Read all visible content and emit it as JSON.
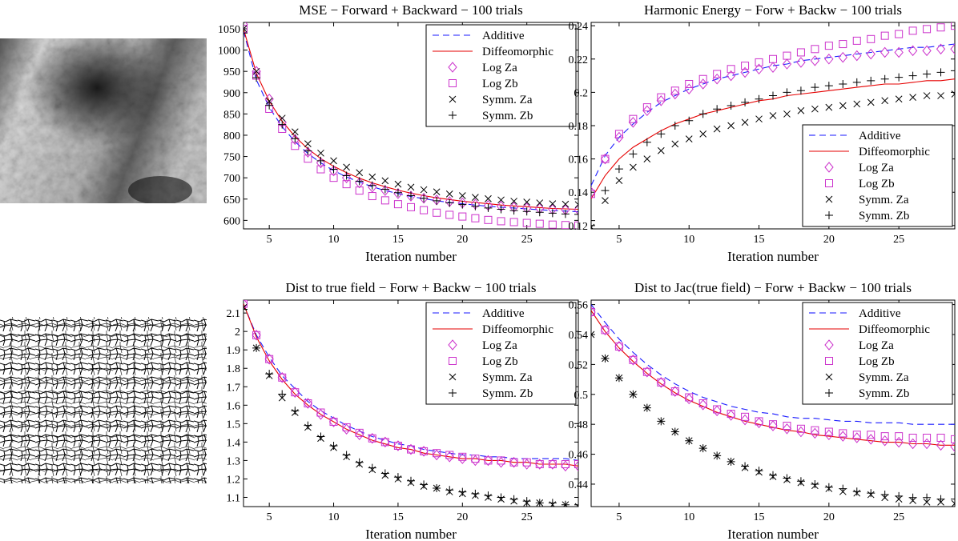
{
  "colors": {
    "additive": "#1a1aff",
    "diffeomorphic": "#e60000",
    "log": "#cc33cc",
    "symm": "#000000",
    "axis": "#000000",
    "background": "#ffffff"
  },
  "images": [
    {
      "name": "grayscale-texture-image",
      "kind": "grayscale cellular texture with dark radial center"
    },
    {
      "name": "binary-crack-pattern-image",
      "kind": "black polygonal crack network on white"
    }
  ],
  "chart_data": [
    {
      "type": "line",
      "title": "MSE − Forward + Backward − 100 trials",
      "xlabel": "Iteration number",
      "ylabel": "",
      "xlim": [
        3,
        29
      ],
      "ylim": [
        580,
        1065
      ],
      "xticks": [
        5,
        10,
        15,
        20,
        25
      ],
      "yticks": [
        600,
        650,
        700,
        750,
        800,
        850,
        900,
        950,
        1000,
        1050
      ],
      "legend_position": "top-right",
      "x": [
        3,
        4,
        5,
        6,
        7,
        8,
        9,
        10,
        11,
        12,
        13,
        14,
        15,
        16,
        17,
        18,
        19,
        20,
        21,
        22,
        23,
        24,
        25,
        26,
        27,
        28,
        29
      ],
      "series": [
        {
          "name": "Additive",
          "style": "dashed",
          "values": [
            1045,
            930,
            865,
            820,
            785,
            757,
            735,
            717,
            702,
            690,
            679,
            670,
            663,
            656,
            651,
            646,
            642,
            639,
            636,
            633,
            631,
            629,
            627,
            625,
            623,
            622,
            620
          ]
        },
        {
          "name": "Diffeomorphic",
          "style": "solid",
          "values": [
            1050,
            945,
            880,
            833,
            797,
            768,
            745,
            727,
            712,
            699,
            688,
            679,
            671,
            664,
            658,
            653,
            649,
            645,
            642,
            639,
            636,
            634,
            632,
            630,
            628,
            627,
            626
          ]
        },
        {
          "name": "Log Za",
          "style": "diamond",
          "values": [
            1060,
            950,
            885,
            830,
            790,
            760,
            735,
            716,
            700,
            688,
            678,
            670,
            663,
            657,
            652,
            648,
            644,
            641,
            638,
            635,
            633,
            631,
            629,
            628,
            626,
            625,
            625
          ]
        },
        {
          "name": "Log Zb",
          "style": "square",
          "values": [
            1050,
            940,
            862,
            815,
            775,
            745,
            720,
            700,
            685,
            670,
            657,
            647,
            638,
            631,
            624,
            618,
            613,
            609,
            605,
            601,
            598,
            596,
            594,
            592,
            590,
            589,
            588
          ]
        },
        {
          "name": "Symm. Za",
          "style": "x",
          "values": [
            1050,
            950,
            880,
            840,
            808,
            780,
            758,
            740,
            725,
            712,
            702,
            693,
            685,
            678,
            672,
            667,
            662,
            658,
            654,
            651,
            648,
            645,
            643,
            641,
            639,
            638,
            637
          ]
        },
        {
          "name": "Symm. Zb",
          "style": "plus",
          "values": [
            1040,
            935,
            870,
            825,
            792,
            763,
            740,
            720,
            705,
            692,
            682,
            673,
            665,
            658,
            652,
            646,
            641,
            637,
            633,
            629,
            626,
            623,
            621,
            619,
            617,
            615,
            614
          ]
        }
      ]
    },
    {
      "type": "line",
      "title": "Harmonic Energy − Forw + Backw − 100 trials",
      "xlabel": "Iteration number",
      "ylabel": "",
      "xlim": [
        3,
        29
      ],
      "ylim": [
        0.118,
        0.242
      ],
      "xticks": [
        5,
        10,
        15,
        20,
        25
      ],
      "yticks": [
        0.12,
        0.14,
        0.16,
        0.18,
        0.2,
        0.22,
        0.24
      ],
      "legend_position": "bottom-right",
      "x": [
        3,
        4,
        5,
        6,
        7,
        8,
        9,
        10,
        11,
        12,
        13,
        14,
        15,
        16,
        17,
        18,
        19,
        20,
        21,
        22,
        23,
        24,
        25,
        26,
        27,
        28,
        29
      ],
      "series": [
        {
          "name": "Additive",
          "style": "dashed",
          "values": [
            0.144,
            0.162,
            0.173,
            0.181,
            0.188,
            0.194,
            0.198,
            0.202,
            0.205,
            0.208,
            0.21,
            0.212,
            0.214,
            0.216,
            0.217,
            0.219,
            0.22,
            0.221,
            0.222,
            0.223,
            0.224,
            0.225,
            0.226,
            0.227,
            0.227,
            0.228,
            0.229
          ]
        },
        {
          "name": "Diffeomorphic",
          "style": "solid",
          "values": [
            0.136,
            0.15,
            0.16,
            0.167,
            0.172,
            0.177,
            0.181,
            0.184,
            0.187,
            0.189,
            0.191,
            0.193,
            0.195,
            0.196,
            0.198,
            0.199,
            0.2,
            0.201,
            0.202,
            0.203,
            0.204,
            0.205,
            0.205,
            0.206,
            0.207,
            0.207,
            0.208
          ]
        },
        {
          "name": "Log Za",
          "style": "diamond",
          "values": [
            0.14,
            0.16,
            0.173,
            0.182,
            0.189,
            0.195,
            0.199,
            0.202,
            0.205,
            0.208,
            0.21,
            0.212,
            0.214,
            0.215,
            0.217,
            0.218,
            0.219,
            0.22,
            0.221,
            0.222,
            0.223,
            0.224,
            0.224,
            0.225,
            0.225,
            0.226,
            0.226
          ]
        },
        {
          "name": "Log Zb",
          "style": "square",
          "values": [
            0.139,
            0.16,
            0.175,
            0.184,
            0.191,
            0.197,
            0.201,
            0.205,
            0.208,
            0.211,
            0.214,
            0.216,
            0.218,
            0.22,
            0.222,
            0.224,
            0.226,
            0.228,
            0.229,
            0.231,
            0.232,
            0.234,
            0.235,
            0.237,
            0.238,
            0.239,
            0.24
          ]
        },
        {
          "name": "Symm. Za",
          "style": "x",
          "values": [
            0.119,
            0.135,
            0.147,
            0.155,
            0.16,
            0.165,
            0.169,
            0.172,
            0.175,
            0.178,
            0.18,
            0.182,
            0.184,
            0.186,
            0.187,
            0.189,
            0.19,
            0.191,
            0.192,
            0.193,
            0.194,
            0.195,
            0.196,
            0.197,
            0.198,
            0.198,
            0.199
          ]
        },
        {
          "name": "Symm. Zb",
          "style": "plus",
          "values": [
            0.123,
            0.141,
            0.154,
            0.163,
            0.17,
            0.175,
            0.18,
            0.183,
            0.187,
            0.19,
            0.192,
            0.194,
            0.196,
            0.198,
            0.2,
            0.201,
            0.203,
            0.204,
            0.205,
            0.206,
            0.207,
            0.208,
            0.209,
            0.21,
            0.211,
            0.212,
            0.213
          ]
        }
      ]
    },
    {
      "type": "line",
      "title": "Dist to true field − Forw + Backw − 100 trials",
      "xlabel": "Iteration number",
      "ylabel": "",
      "xlim": [
        3,
        29
      ],
      "ylim": [
        1.05,
        2.17
      ],
      "xticks": [
        5,
        10,
        15,
        20,
        25
      ],
      "yticks": [
        1.1,
        1.2,
        1.3,
        1.4,
        1.5,
        1.6,
        1.7,
        1.8,
        1.9,
        2,
        2.1
      ],
      "legend_position": "top-right",
      "x": [
        3,
        4,
        5,
        6,
        7,
        8,
        9,
        10,
        11,
        12,
        13,
        14,
        15,
        16,
        17,
        18,
        19,
        20,
        21,
        22,
        23,
        24,
        25,
        26,
        27,
        28,
        29
      ],
      "series": [
        {
          "name": "Additive",
          "style": "dashed",
          "values": [
            2.15,
            1.98,
            1.86,
            1.76,
            1.69,
            1.62,
            1.57,
            1.53,
            1.49,
            1.46,
            1.43,
            1.41,
            1.39,
            1.38,
            1.36,
            1.35,
            1.34,
            1.33,
            1.33,
            1.32,
            1.32,
            1.31,
            1.31,
            1.31,
            1.31,
            1.31,
            1.3
          ]
        },
        {
          "name": "Diffeomorphic",
          "style": "solid",
          "values": [
            2.15,
            1.97,
            1.84,
            1.74,
            1.66,
            1.6,
            1.55,
            1.51,
            1.47,
            1.44,
            1.41,
            1.39,
            1.37,
            1.36,
            1.34,
            1.33,
            1.32,
            1.31,
            1.31,
            1.3,
            1.3,
            1.29,
            1.29,
            1.28,
            1.28,
            1.28,
            1.27
          ]
        },
        {
          "name": "Log Za",
          "style": "diamond",
          "values": [
            2.15,
            1.98,
            1.85,
            1.75,
            1.67,
            1.61,
            1.55,
            1.51,
            1.47,
            1.44,
            1.42,
            1.4,
            1.38,
            1.36,
            1.35,
            1.33,
            1.32,
            1.31,
            1.3,
            1.3,
            1.29,
            1.29,
            1.28,
            1.28,
            1.28,
            1.27,
            1.27
          ]
        },
        {
          "name": "Log Zb",
          "style": "square",
          "values": [
            2.15,
            1.98,
            1.85,
            1.75,
            1.67,
            1.61,
            1.56,
            1.51,
            1.48,
            1.45,
            1.42,
            1.4,
            1.38,
            1.36,
            1.35,
            1.34,
            1.33,
            1.32,
            1.31,
            1.3,
            1.3,
            1.29,
            1.29,
            1.28,
            1.28,
            1.28,
            1.28
          ]
        },
        {
          "name": "Symm. Za",
          "style": "x",
          "values": [
            2.13,
            1.91,
            1.76,
            1.64,
            1.56,
            1.48,
            1.42,
            1.37,
            1.32,
            1.28,
            1.25,
            1.22,
            1.2,
            1.18,
            1.16,
            1.15,
            1.13,
            1.12,
            1.11,
            1.1,
            1.09,
            1.08,
            1.07,
            1.07,
            1.06,
            1.06,
            1.05
          ]
        },
        {
          "name": "Symm. Zb",
          "style": "plus",
          "values": [
            2.12,
            1.91,
            1.77,
            1.66,
            1.57,
            1.49,
            1.43,
            1.38,
            1.33,
            1.29,
            1.26,
            1.23,
            1.21,
            1.19,
            1.17,
            1.15,
            1.14,
            1.13,
            1.12,
            1.11,
            1.1,
            1.09,
            1.08,
            1.07,
            1.07,
            1.06,
            1.06
          ]
        }
      ]
    },
    {
      "type": "line",
      "title": "Dist to Jac(true field) − Forw + Backw − 100 trials",
      "xlabel": "Iteration number",
      "ylabel": "",
      "xlim": [
        3,
        29
      ],
      "ylim": [
        0.425,
        0.563
      ],
      "xticks": [
        5,
        10,
        15,
        20,
        25
      ],
      "yticks": [
        0.44,
        0.46,
        0.48,
        0.5,
        0.52,
        0.54,
        0.56
      ],
      "legend_position": "top-right",
      "x": [
        3,
        4,
        5,
        6,
        7,
        8,
        9,
        10,
        11,
        12,
        13,
        14,
        15,
        16,
        17,
        18,
        19,
        20,
        21,
        22,
        23,
        24,
        25,
        26,
        27,
        28,
        29
      ],
      "series": [
        {
          "name": "Additive",
          "style": "dashed",
          "values": [
            0.56,
            0.548,
            0.537,
            0.528,
            0.52,
            0.513,
            0.507,
            0.502,
            0.498,
            0.495,
            0.492,
            0.49,
            0.488,
            0.487,
            0.485,
            0.484,
            0.484,
            0.483,
            0.482,
            0.482,
            0.481,
            0.481,
            0.481,
            0.48,
            0.48,
            0.48,
            0.48
          ]
        },
        {
          "name": "Diffeomorphic",
          "style": "solid",
          "values": [
            0.556,
            0.542,
            0.531,
            0.522,
            0.514,
            0.507,
            0.501,
            0.496,
            0.492,
            0.488,
            0.485,
            0.482,
            0.48,
            0.478,
            0.476,
            0.475,
            0.473,
            0.472,
            0.471,
            0.47,
            0.469,
            0.468,
            0.468,
            0.467,
            0.467,
            0.466,
            0.466
          ]
        },
        {
          "name": "Log Za",
          "style": "diamond",
          "values": [
            0.555,
            0.543,
            0.532,
            0.523,
            0.515,
            0.508,
            0.502,
            0.497,
            0.493,
            0.489,
            0.486,
            0.483,
            0.481,
            0.479,
            0.477,
            0.475,
            0.474,
            0.473,
            0.472,
            0.471,
            0.47,
            0.469,
            0.468,
            0.467,
            0.467,
            0.466,
            0.465
          ]
        },
        {
          "name": "Log Zb",
          "style": "square",
          "values": [
            0.555,
            0.543,
            0.532,
            0.523,
            0.515,
            0.508,
            0.502,
            0.498,
            0.494,
            0.49,
            0.487,
            0.485,
            0.482,
            0.48,
            0.479,
            0.477,
            0.476,
            0.475,
            0.474,
            0.473,
            0.473,
            0.472,
            0.472,
            0.471,
            0.471,
            0.471,
            0.47
          ]
        },
        {
          "name": "Symm. Za",
          "style": "x",
          "values": [
            0.54,
            0.524,
            0.511,
            0.5,
            0.491,
            0.482,
            0.475,
            0.469,
            0.464,
            0.459,
            0.455,
            0.451,
            0.448,
            0.445,
            0.443,
            0.441,
            0.439,
            0.437,
            0.435,
            0.434,
            0.433,
            0.431,
            0.43,
            0.429,
            0.428,
            0.428,
            0.427
          ]
        },
        {
          "name": "Symm. Zb",
          "style": "plus",
          "values": [
            0.54,
            0.524,
            0.511,
            0.5,
            0.491,
            0.482,
            0.475,
            0.469,
            0.464,
            0.459,
            0.455,
            0.452,
            0.449,
            0.446,
            0.444,
            0.442,
            0.44,
            0.438,
            0.437,
            0.435,
            0.434,
            0.433,
            0.432,
            0.431,
            0.431,
            0.43,
            0.43
          ]
        }
      ]
    }
  ]
}
